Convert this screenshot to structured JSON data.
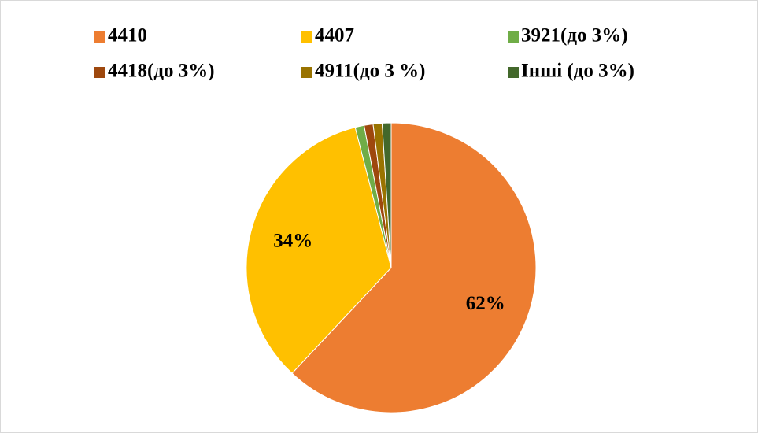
{
  "chart_data": {
    "type": "pie",
    "categories": [
      "4410",
      "4407",
      "3921(до 3%)",
      "4418(до 3%)",
      "4911(до 3 %)",
      "Інші (до 3%)"
    ],
    "values": [
      62,
      34,
      1,
      1,
      1,
      1
    ],
    "value_labels": [
      "62%",
      "34%",
      null,
      null,
      null,
      null
    ],
    "colors": [
      "#ed7d31",
      "#ffc000",
      "#70ad47",
      "#9e480e",
      "#997300",
      "#43682b"
    ],
    "legend": "top"
  }
}
